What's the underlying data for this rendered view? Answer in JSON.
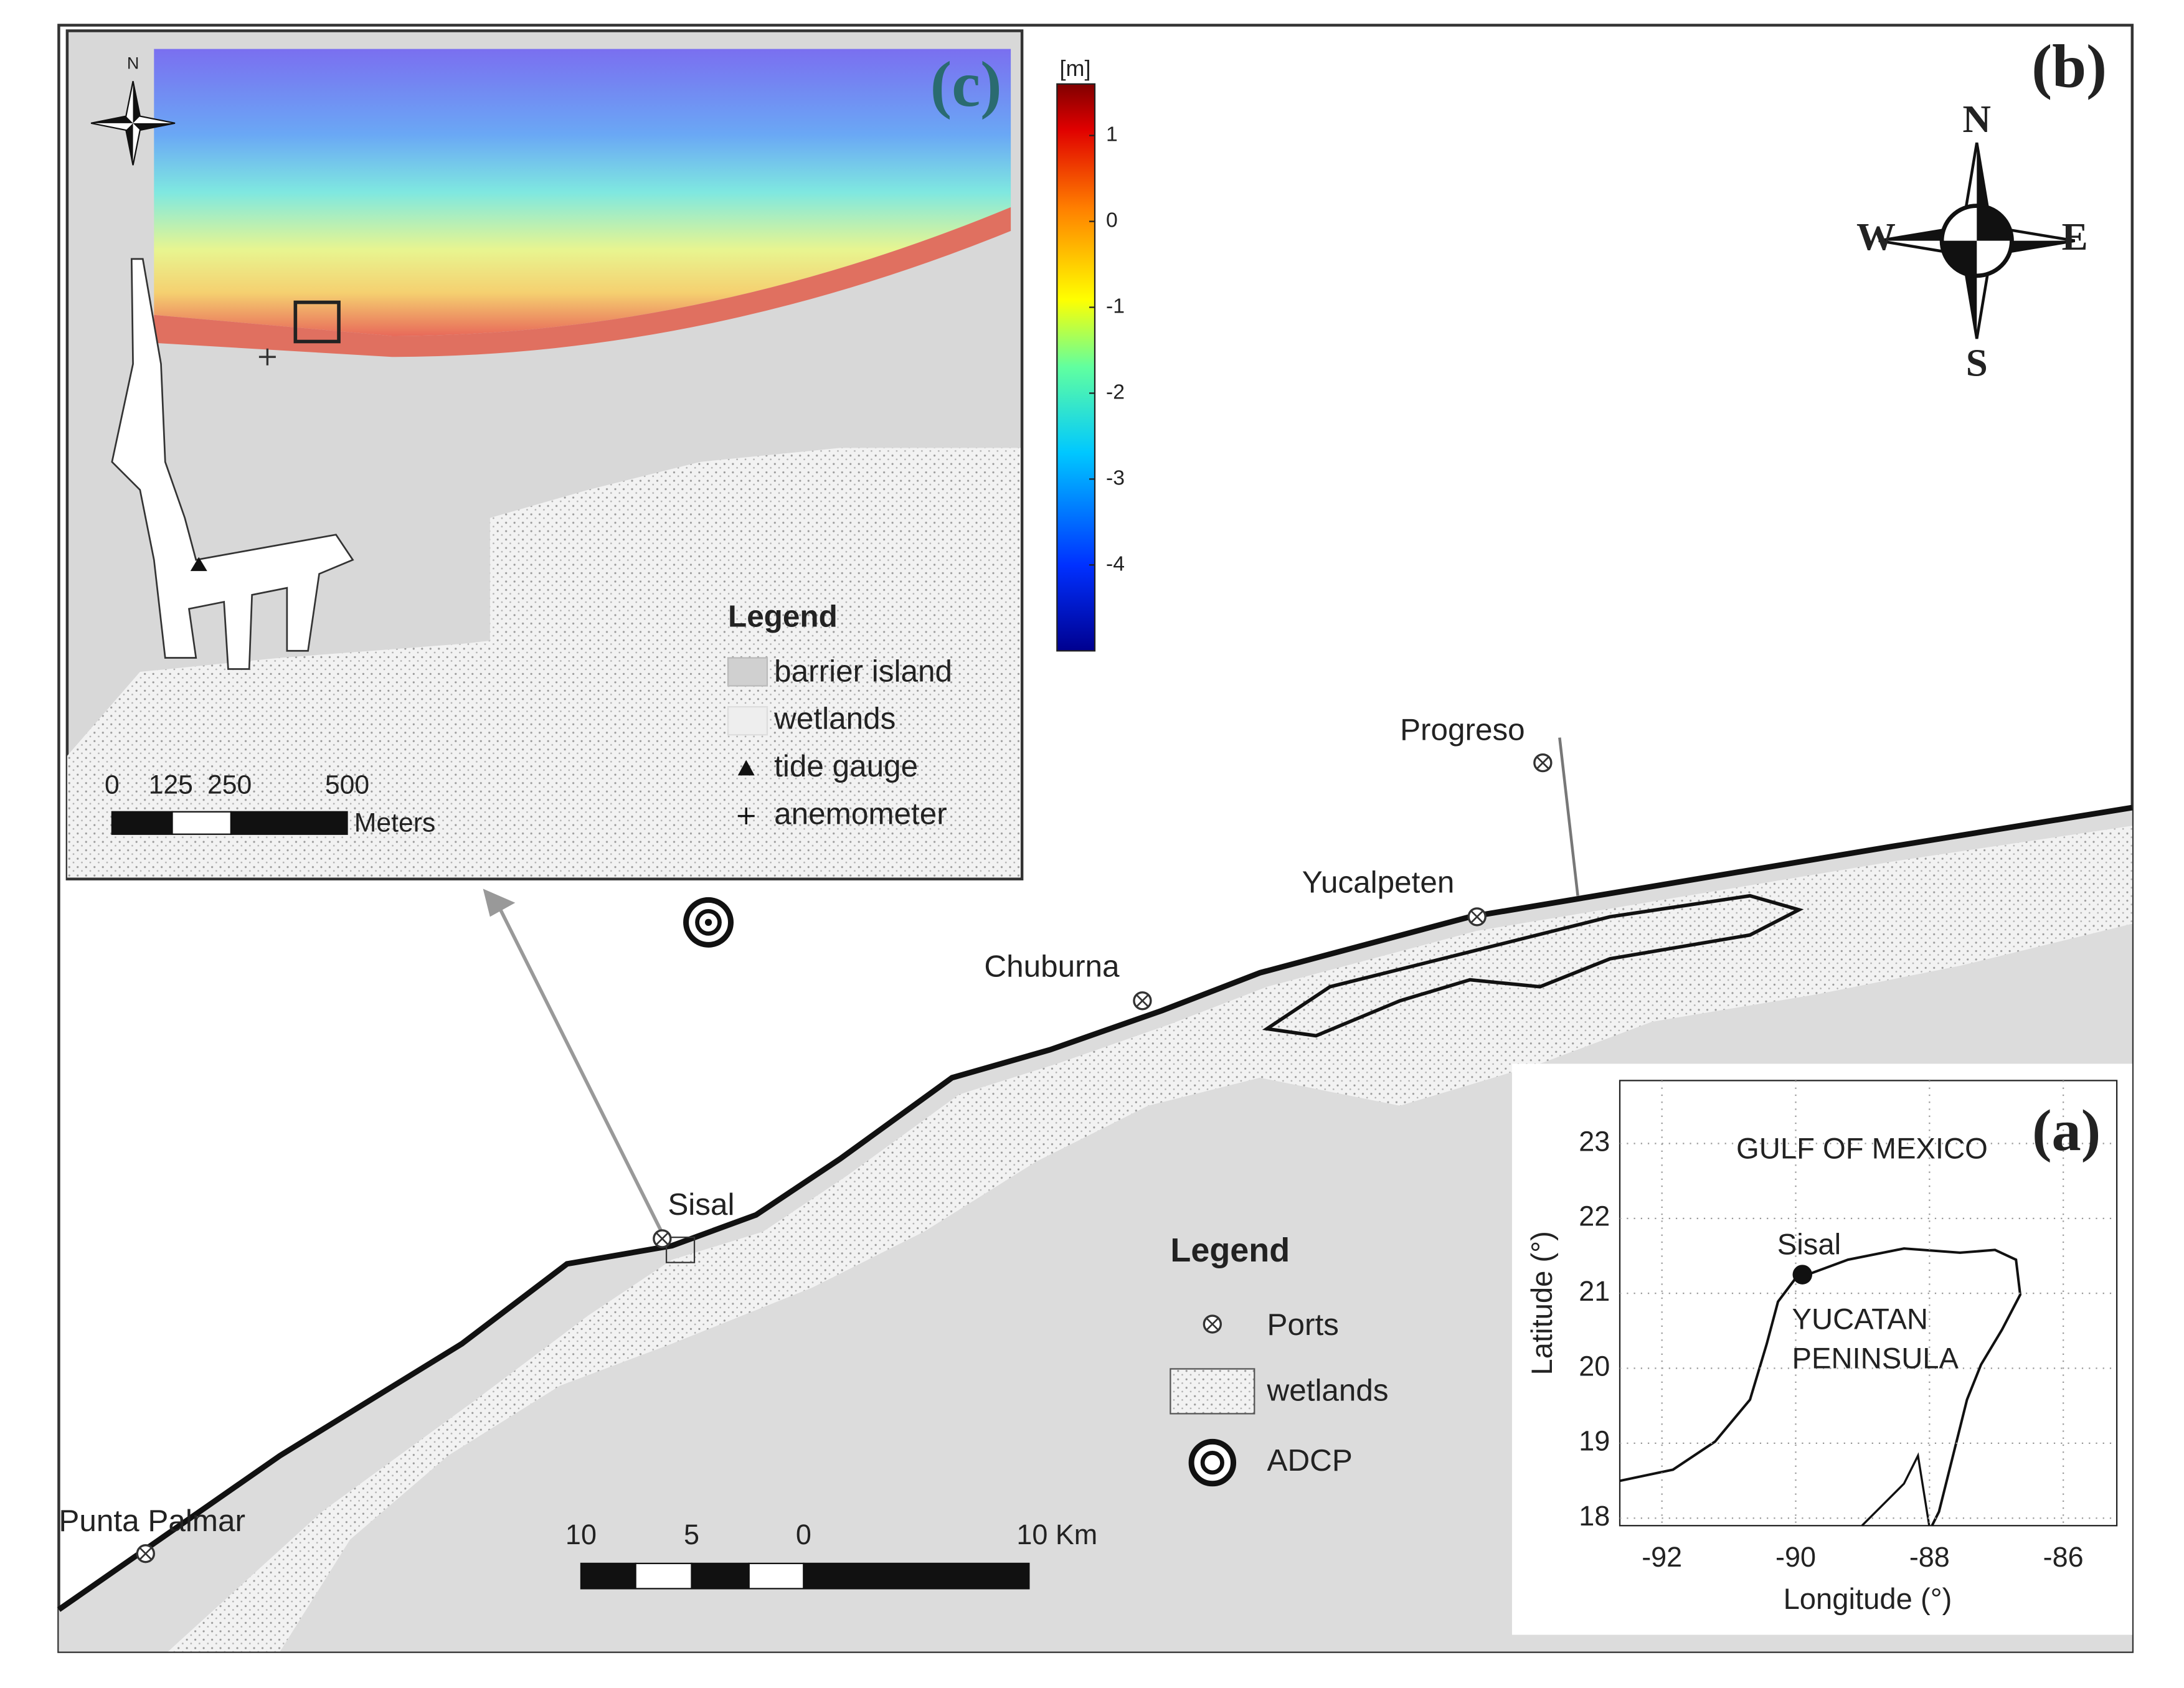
{
  "panel_b": {
    "label": "(b)",
    "compass": {
      "n": "N",
      "e": "E",
      "s": "S",
      "w": "W"
    },
    "places": [
      "Progreso",
      "Yucalpeten",
      "Chuburna",
      "Sisal",
      "Punta Palmar"
    ],
    "legend": {
      "title": "Legend",
      "items": [
        "Ports",
        "wetlands",
        "ADCP"
      ]
    },
    "scale_bar": {
      "labels": [
        10,
        5,
        0
      ],
      "end_label": "10 Km"
    }
  },
  "panel_c": {
    "label": "(c)",
    "north": "N",
    "legend": {
      "title": "Legend",
      "items": [
        "barrier island",
        "wetlands",
        "tide gauge",
        "anemometer"
      ]
    },
    "scale_bar": {
      "labels": [
        0,
        125,
        250,
        500
      ],
      "unit": "Meters"
    },
    "colorbar": {
      "unit": "[m]",
      "lim": [
        -5,
        1.6
      ],
      "ticks": [
        1,
        0,
        -1,
        -2,
        -3,
        -4
      ]
    }
  },
  "panel_a": {
    "label": "(a)",
    "xlabel": "Longitude (°)",
    "ylabel": "Latitude (°)",
    "xlim": [
      -92.63,
      -85.2
    ],
    "ylim": [
      17.9,
      23.84
    ],
    "xticks": [
      -92,
      -90,
      -88,
      -86
    ],
    "yticks": [
      18,
      19,
      20,
      21,
      22,
      23
    ],
    "grid": true,
    "annotations": [
      "GULF OF MEXICO",
      "YUCATAN",
      "PENINSULA"
    ],
    "point": {
      "name": "Sisal",
      "lon": -89.9,
      "lat": 21.25
    }
  }
}
